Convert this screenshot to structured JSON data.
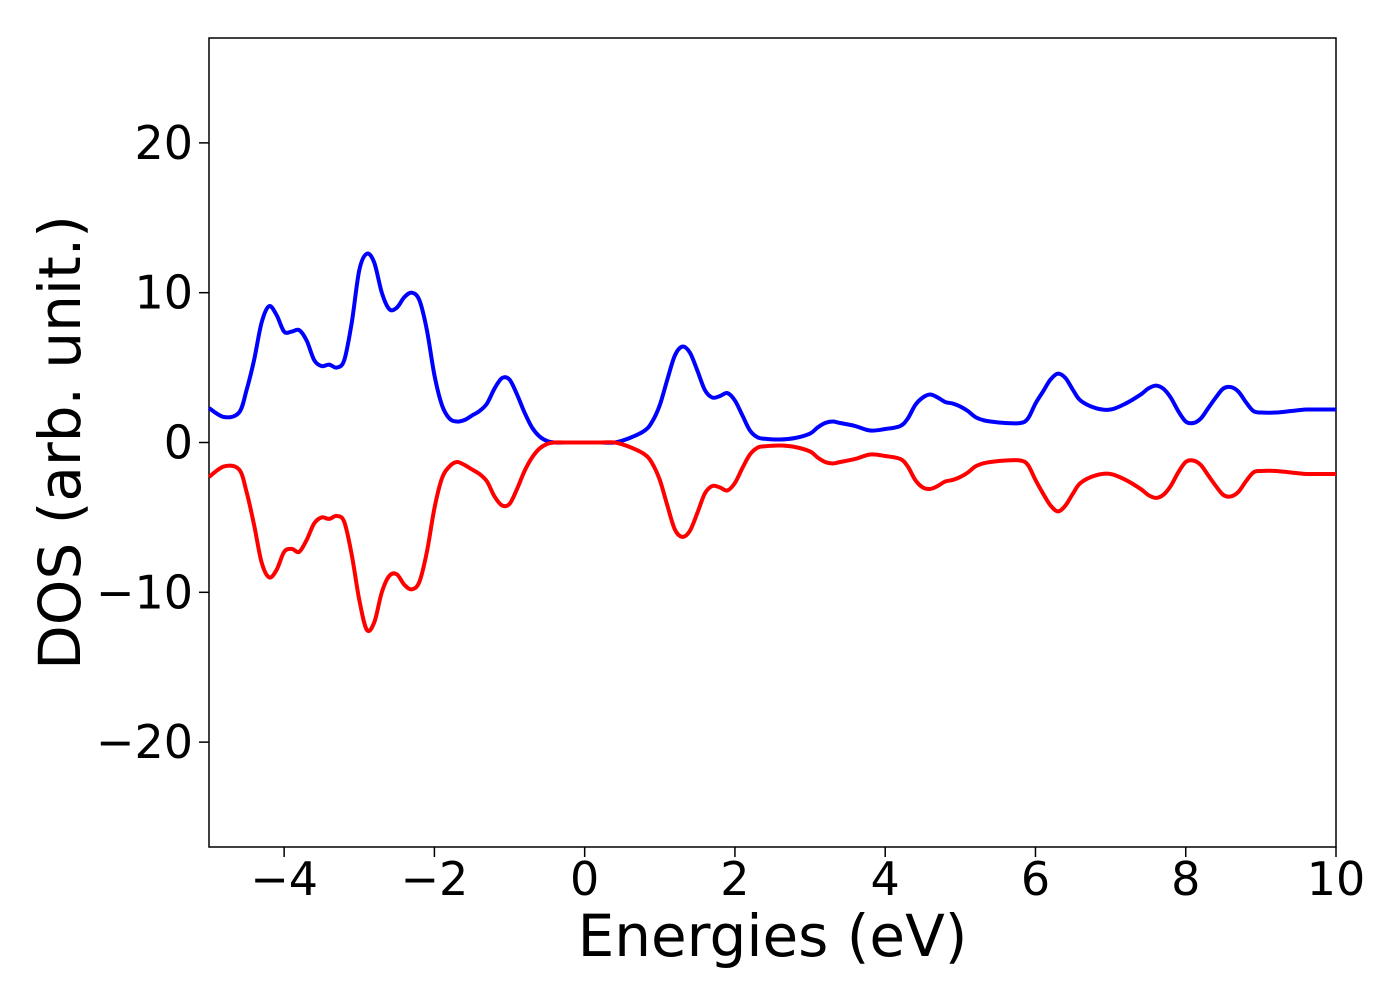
{
  "chart_data": {
    "type": "line",
    "title": "",
    "xlabel": "Energies (eV)",
    "ylabel": "DOS (arb. unit.)",
    "xlim": [
      -5,
      10
    ],
    "ylim": [
      -27,
      27
    ],
    "x_ticks": [
      -4,
      -2,
      0,
      2,
      4,
      6,
      8,
      10
    ],
    "x_tick_labels": [
      "−4",
      "−2",
      "0",
      "2",
      "4",
      "6",
      "8",
      "10"
    ],
    "y_ticks": [
      -20,
      -10,
      0,
      10,
      20
    ],
    "y_tick_labels": [
      "−20",
      "−10",
      "0",
      "10",
      "20"
    ],
    "grid": false,
    "legend": "none",
    "series": [
      {
        "color": "#0000ff",
        "x": [
          -5.0,
          -4.8,
          -4.6,
          -4.5,
          -4.4,
          -4.3,
          -4.2,
          -4.1,
          -4.0,
          -3.9,
          -3.8,
          -3.7,
          -3.6,
          -3.5,
          -3.4,
          -3.3,
          -3.2,
          -3.1,
          -3.0,
          -2.9,
          -2.8,
          -2.7,
          -2.6,
          -2.5,
          -2.4,
          -2.3,
          -2.2,
          -2.1,
          -2.0,
          -1.9,
          -1.8,
          -1.7,
          -1.6,
          -1.5,
          -1.4,
          -1.3,
          -1.2,
          -1.1,
          -1.0,
          -0.9,
          -0.8,
          -0.7,
          -0.6,
          -0.5,
          -0.4,
          -0.2,
          0.0,
          0.2,
          0.4,
          0.6,
          0.8,
          0.9,
          1.0,
          1.1,
          1.2,
          1.3,
          1.4,
          1.5,
          1.6,
          1.7,
          1.8,
          1.9,
          2.0,
          2.1,
          2.2,
          2.3,
          2.4,
          2.6,
          2.8,
          3.0,
          3.1,
          3.2,
          3.3,
          3.4,
          3.6,
          3.8,
          4.0,
          4.2,
          4.3,
          4.4,
          4.5,
          4.6,
          4.7,
          4.8,
          4.9,
          5.0,
          5.1,
          5.2,
          5.3,
          5.4,
          5.6,
          5.8,
          5.9,
          6.0,
          6.1,
          6.2,
          6.3,
          6.4,
          6.5,
          6.6,
          6.8,
          7.0,
          7.2,
          7.4,
          7.5,
          7.6,
          7.7,
          7.8,
          7.9,
          8.0,
          8.1,
          8.2,
          8.3,
          8.4,
          8.5,
          8.6,
          8.7,
          8.8,
          8.9,
          9.0,
          9.2,
          9.4,
          9.6,
          9.8,
          10.0
        ],
        "y": [
          2.3,
          1.7,
          2.0,
          3.5,
          5.5,
          8.0,
          9.1,
          8.5,
          7.4,
          7.4,
          7.5,
          6.8,
          5.5,
          5.1,
          5.2,
          5.0,
          5.5,
          8.0,
          11.5,
          12.6,
          12.0,
          10.0,
          8.9,
          9.0,
          9.7,
          10.0,
          9.5,
          7.5,
          4.5,
          2.5,
          1.6,
          1.4,
          1.5,
          1.8,
          2.1,
          2.6,
          3.6,
          4.3,
          4.2,
          3.2,
          2.0,
          1.0,
          0.4,
          0.1,
          0.0,
          0.0,
          0.0,
          0.0,
          0.0,
          0.3,
          0.8,
          1.4,
          2.5,
          4.2,
          5.8,
          6.4,
          6.0,
          4.8,
          3.5,
          3.0,
          3.1,
          3.3,
          2.8,
          1.8,
          0.8,
          0.35,
          0.25,
          0.2,
          0.3,
          0.6,
          1.0,
          1.3,
          1.4,
          1.3,
          1.1,
          0.8,
          0.9,
          1.1,
          1.6,
          2.5,
          3.0,
          3.2,
          3.0,
          2.7,
          2.6,
          2.4,
          2.1,
          1.7,
          1.5,
          1.4,
          1.3,
          1.3,
          1.6,
          2.6,
          3.4,
          4.2,
          4.6,
          4.3,
          3.5,
          2.8,
          2.3,
          2.2,
          2.6,
          3.2,
          3.6,
          3.8,
          3.6,
          3.0,
          2.1,
          1.4,
          1.3,
          1.6,
          2.3,
          3.0,
          3.6,
          3.7,
          3.4,
          2.7,
          2.1,
          2.0,
          2.0,
          2.1,
          2.2,
          2.2,
          2.2
        ]
      },
      {
        "color": "#ff0000",
        "x": [
          -5.0,
          -4.8,
          -4.6,
          -4.5,
          -4.4,
          -4.3,
          -4.2,
          -4.1,
          -4.0,
          -3.9,
          -3.8,
          -3.7,
          -3.6,
          -3.5,
          -3.4,
          -3.3,
          -3.2,
          -3.1,
          -3.0,
          -2.9,
          -2.8,
          -2.7,
          -2.6,
          -2.5,
          -2.4,
          -2.3,
          -2.2,
          -2.1,
          -2.0,
          -1.9,
          -1.8,
          -1.7,
          -1.6,
          -1.5,
          -1.4,
          -1.3,
          -1.2,
          -1.1,
          -1.0,
          -0.9,
          -0.8,
          -0.7,
          -0.6,
          -0.5,
          -0.4,
          -0.2,
          0.0,
          0.2,
          0.4,
          0.6,
          0.8,
          0.9,
          1.0,
          1.1,
          1.2,
          1.3,
          1.4,
          1.5,
          1.6,
          1.7,
          1.8,
          1.9,
          2.0,
          2.1,
          2.2,
          2.3,
          2.4,
          2.6,
          2.8,
          3.0,
          3.1,
          3.2,
          3.3,
          3.4,
          3.6,
          3.8,
          4.0,
          4.2,
          4.3,
          4.4,
          4.5,
          4.6,
          4.7,
          4.8,
          4.9,
          5.0,
          5.1,
          5.2,
          5.3,
          5.4,
          5.6,
          5.8,
          5.9,
          6.0,
          6.1,
          6.2,
          6.3,
          6.4,
          6.5,
          6.6,
          6.8,
          7.0,
          7.2,
          7.4,
          7.5,
          7.6,
          7.7,
          7.8,
          7.9,
          8.0,
          8.1,
          8.2,
          8.3,
          8.4,
          8.5,
          8.6,
          8.7,
          8.8,
          8.9,
          9.0,
          9.2,
          9.4,
          9.6,
          9.8,
          10.0
        ],
        "y": [
          -2.3,
          -1.6,
          -1.8,
          -3.3,
          -5.5,
          -8.0,
          -9.0,
          -8.5,
          -7.3,
          -7.1,
          -7.3,
          -6.5,
          -5.4,
          -5.0,
          -5.1,
          -4.9,
          -5.3,
          -7.5,
          -10.5,
          -12.5,
          -12.0,
          -10.0,
          -8.9,
          -8.8,
          -9.5,
          -9.8,
          -9.3,
          -7.3,
          -4.4,
          -2.4,
          -1.6,
          -1.3,
          -1.5,
          -1.8,
          -2.1,
          -2.6,
          -3.6,
          -4.2,
          -4.1,
          -3.1,
          -1.9,
          -1.0,
          -0.4,
          -0.1,
          0.0,
          0.0,
          0.0,
          0.0,
          0.0,
          -0.3,
          -0.8,
          -1.4,
          -2.5,
          -4.2,
          -5.8,
          -6.3,
          -5.9,
          -4.7,
          -3.4,
          -2.9,
          -3.0,
          -3.2,
          -2.7,
          -1.7,
          -0.8,
          -0.35,
          -0.25,
          -0.2,
          -0.3,
          -0.6,
          -1.0,
          -1.3,
          -1.4,
          -1.3,
          -1.1,
          -0.8,
          -0.9,
          -1.1,
          -1.6,
          -2.5,
          -3.0,
          -3.1,
          -2.9,
          -2.6,
          -2.5,
          -2.3,
          -2.0,
          -1.6,
          -1.4,
          -1.3,
          -1.2,
          -1.2,
          -1.5,
          -2.5,
          -3.4,
          -4.2,
          -4.6,
          -4.2,
          -3.4,
          -2.7,
          -2.2,
          -2.1,
          -2.5,
          -3.1,
          -3.5,
          -3.7,
          -3.5,
          -2.9,
          -2.0,
          -1.3,
          -1.2,
          -1.5,
          -2.2,
          -2.9,
          -3.5,
          -3.6,
          -3.3,
          -2.6,
          -2.0,
          -1.9,
          -1.9,
          -2.0,
          -2.1,
          -2.1,
          -2.1
        ]
      }
    ]
  }
}
